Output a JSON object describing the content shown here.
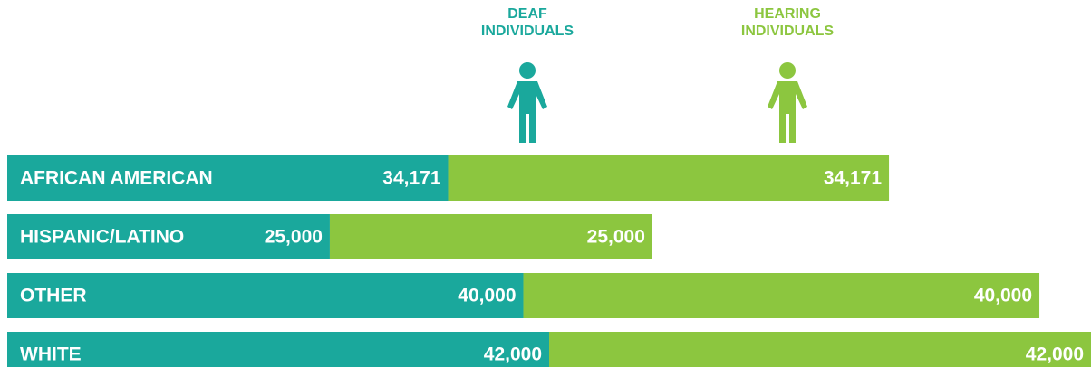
{
  "chart_data": {
    "type": "stacked-bar",
    "orientation": "horizontal",
    "categories": [
      "AFRICAN AMERICAN",
      "HISPANIC/LATINO",
      "OTHER",
      "WHITE"
    ],
    "series": [
      {
        "name": "DEAF INDIVIDUALS",
        "color": "#1aa89c",
        "values": [
          34171,
          25000,
          40000,
          42000
        ],
        "value_labels": [
          "34,171",
          "25,000",
          "40,000",
          "42,000"
        ]
      },
      {
        "name": "HEARING INDIVIDUALS",
        "color": "#8cc63f",
        "values": [
          34171,
          25000,
          40000,
          42000
        ],
        "value_labels": [
          "34,171",
          "25,000",
          "40,000",
          "42,000"
        ]
      }
    ]
  }
}
